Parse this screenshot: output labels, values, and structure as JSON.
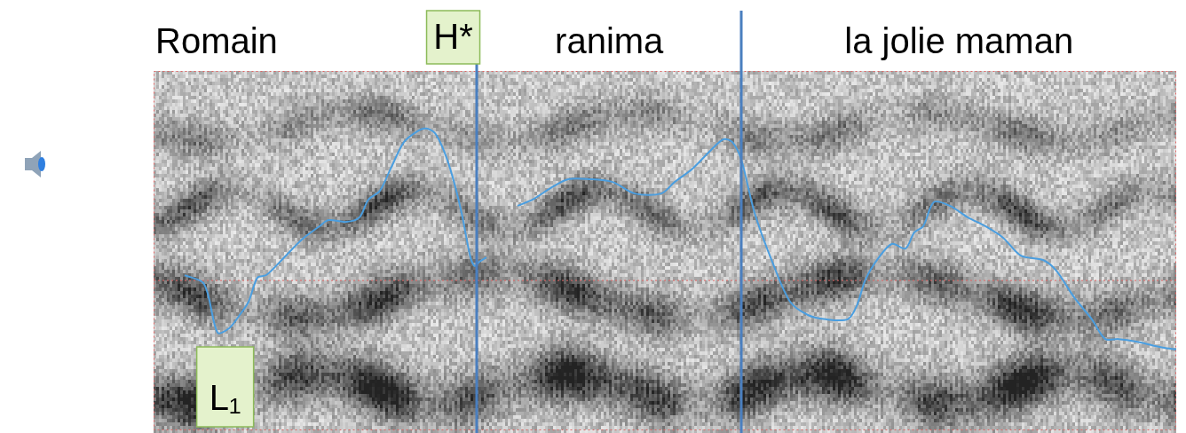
{
  "chart_data": {
    "type": "line",
    "words": [
      "Romain",
      "ranima",
      "la jolie maman"
    ],
    "boundaries": [
      31.6,
      57.5
    ],
    "tones": [
      {
        "label": "H*",
        "x": 29.3,
        "position": "top"
      },
      {
        "label": "L₁",
        "x": 7.0,
        "position": "bottom"
      }
    ],
    "reference_y": 41.7,
    "color": "#4a9ee0",
    "xlim": [
      0,
      100
    ],
    "ylim": [
      0,
      100
    ],
    "tick_labels": false,
    "grid": false,
    "x": [
      3.04,
      4.95,
      6.25,
      7.38,
      8.42,
      9.29,
      10.16,
      11.02,
      12.76,
      14.5,
      16.23,
      17.1,
      18.84,
      20.14,
      21.0,
      22.14,
      23.18,
      24.48,
      25.78,
      26.65,
      27.52,
      28.39,
      29.25,
      30.12,
      30.99,
      31.42,
      31.86,
      32.55,
      35.0,
      35.59,
      37.07,
      38.8,
      40.54,
      42.71,
      44.88,
      47.05,
      49.65,
      50.95,
      52.69,
      54.43,
      55.73,
      56.6,
      57.47,
      58.77,
      60.5,
      62.24,
      63.98,
      65.71,
      67.88,
      68.75,
      69.62,
      70.92,
      72.22,
      73.52,
      74.39,
      75.26,
      76.3,
      77.86,
      79.6,
      81.34,
      83.07,
      84.81,
      86.98,
      88.28,
      90.02,
      91.75,
      93.06,
      94.36,
      96.09,
      98.7,
      100
    ],
    "values": [
      43.2,
      40.7,
      27.2,
      28.4,
      32.1,
      35.8,
      42.5,
      43.2,
      48.1,
      53.1,
      56.8,
      58.5,
      58.0,
      59.3,
      64.2,
      66.7,
      72.8,
      80.2,
      83.2,
      84.0,
      82.7,
      77.8,
      70.4,
      60.5,
      48.1,
      45.7,
      46.9,
      48.1,
      null,
      62.5,
      64.2,
      67.4,
      69.9,
      69.9,
      69.1,
      65.9,
      65.9,
      69.1,
      72.8,
      77.8,
      81.0,
      80.2,
      75.3,
      60.5,
      46.9,
      35.8,
      32.1,
      30.9,
      30.9,
      34.6,
      42.0,
      48.1,
      51.9,
      50.6,
      55.1,
      56.8,
      63.5,
      62.5,
      59.3,
      56.8,
      53.6,
      48.6,
      47.4,
      44.4,
      37.0,
      30.9,
      25.4,
      25.4,
      24.7,
      23.0,
      22.5
    ]
  }
}
